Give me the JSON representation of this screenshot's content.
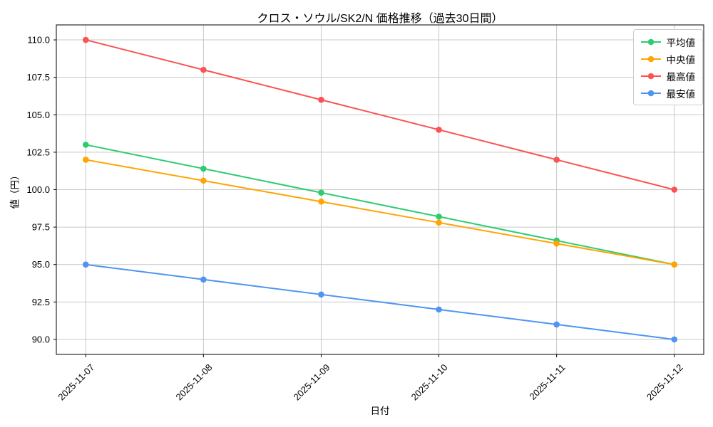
{
  "chart_data": {
    "type": "line",
    "title": "クロス・ソウル/SK2/N 価格推移（過去30日間）",
    "xlabel": "日付",
    "ylabel": "値（円）",
    "categories": [
      "2025-11-07",
      "2025-11-08",
      "2025-11-09",
      "2025-11-10",
      "2025-11-11",
      "2025-11-12"
    ],
    "series": [
      {
        "name": "平均値",
        "color": "#2ecc71",
        "values": [
          103,
          101.4,
          99.8,
          98.2,
          96.6,
          95
        ]
      },
      {
        "name": "中央値",
        "color": "#ffa502",
        "values": [
          102,
          100.6,
          99.2,
          97.8,
          96.4,
          95
        ]
      },
      {
        "name": "最高値",
        "color": "#fa5352",
        "values": [
          110,
          108,
          106,
          104,
          102,
          100
        ]
      },
      {
        "name": "最安値",
        "color": "#4e94f3",
        "values": [
          95,
          94,
          93,
          92,
          91,
          90
        ]
      }
    ],
    "ylim": [
      89,
      111
    ],
    "yticks": [
      90.0,
      92.5,
      95.0,
      97.5,
      100.0,
      102.5,
      105.0,
      107.5,
      110.0
    ],
    "grid": true,
    "legend_position": "upper right",
    "grid_color": "#c8c8c8",
    "axis_color": "#000000"
  }
}
